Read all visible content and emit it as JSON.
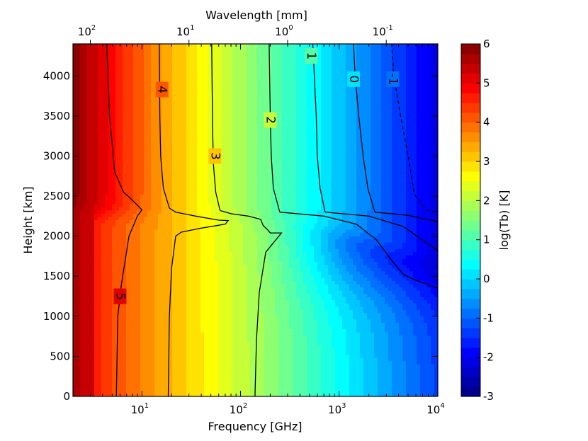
{
  "chart_data": {
    "type": "heatmap",
    "subtype": "filled-contour",
    "xlabel": "Frequency [GHz]",
    "x_scale": "log",
    "xlim": [
      2,
      10000
    ],
    "x_ticks": [
      {
        "value": 10,
        "base": "10",
        "exp": "1"
      },
      {
        "value": 100,
        "base": "10",
        "exp": "2"
      },
      {
        "value": 1000,
        "base": "10",
        "exp": "3"
      },
      {
        "value": 10000,
        "base": "10",
        "exp": "4"
      }
    ],
    "top_xlabel": "Wavelength [mm]",
    "top_ticks": [
      {
        "frequency": 3,
        "base": "10",
        "exp": "2"
      },
      {
        "frequency": 30,
        "base": "10",
        "exp": "1"
      },
      {
        "frequency": 300,
        "base": "10",
        "exp": "0"
      },
      {
        "frequency": 3000,
        "base": "10",
        "exp": "-1"
      }
    ],
    "ylabel": "Height [km]",
    "ylim": [
      0,
      4400
    ],
    "y_ticks": [
      "0",
      "500",
      "1000",
      "1500",
      "2000",
      "2500",
      "3000",
      "3500",
      "4000"
    ],
    "colorbar": {
      "label": "log(Tb) [K]",
      "range": [
        -3,
        6
      ],
      "ticks": [
        "-3",
        "-2",
        "-1",
        "0",
        "1",
        "2",
        "3",
        "4",
        "5",
        "6"
      ],
      "colormap": "jet",
      "jet_stops": [
        "#00007f",
        "#0000ff",
        "#007fff",
        "#00ffff",
        "#7fff7f",
        "#ffff00",
        "#ff7f00",
        "#ff0000",
        "#7f0000"
      ]
    },
    "contours": [
      {
        "level": "5",
        "label_at": [
          6,
          1250
        ],
        "points": [
          [
            5.5,
            0
          ],
          [
            5.7,
            1000
          ],
          [
            6.2,
            1400
          ],
          [
            7.4,
            2000
          ],
          [
            9,
            2250
          ],
          [
            10,
            2330
          ],
          [
            8,
            2450
          ],
          [
            6.5,
            2550
          ],
          [
            5.3,
            2800
          ],
          [
            4.7,
            3500
          ],
          [
            4.4,
            4400
          ]
        ]
      },
      {
        "level": "4",
        "label_at": [
          16,
          3830
        ],
        "points": [
          [
            19,
            2350
          ],
          [
            22,
            2300
          ],
          [
            35,
            2250
          ],
          [
            60,
            2200
          ],
          [
            75,
            2195
          ],
          [
            70,
            2150
          ],
          [
            40,
            2100
          ],
          [
            25,
            2050
          ],
          [
            22,
            2000
          ],
          [
            20,
            1600
          ],
          [
            19,
            1000
          ],
          [
            18.5,
            0
          ]
        ]
      },
      {
        "level": "4",
        "label_at": [
          16,
          3830
        ],
        "points": [
          [
            19,
            2350
          ],
          [
            16.5,
            2600
          ],
          [
            15.5,
            3000
          ],
          [
            15.2,
            3500
          ],
          [
            15,
            4400
          ]
        ]
      },
      {
        "level": "3",
        "label_at": [
          55,
          3000
        ],
        "points": [
          [
            62,
            2320
          ],
          [
            80,
            2280
          ],
          [
            120,
            2250
          ],
          [
            160,
            2210
          ],
          [
            170,
            2130
          ],
          [
            185,
            2090
          ],
          [
            200,
            2040
          ],
          [
            260,
            2040
          ],
          [
            180,
            1800
          ],
          [
            155,
            1300
          ],
          [
            145,
            700
          ],
          [
            140,
            0
          ]
        ]
      },
      {
        "level": "3",
        "label_at": [
          55,
          3000
        ],
        "points": [
          [
            62,
            2320
          ],
          [
            56,
            2550
          ],
          [
            53,
            2900
          ],
          [
            52,
            3400
          ],
          [
            51,
            4400
          ]
        ]
      },
      {
        "level": "2",
        "label_at": [
          200,
          3450
        ],
        "points": [
          [
            250,
            2300
          ],
          [
            700,
            2250
          ],
          [
            1500,
            2150
          ],
          [
            2400,
            1950
          ],
          [
            3500,
            1680
          ],
          [
            4500,
            1520
          ],
          [
            6000,
            1450
          ],
          [
            10000,
            1350
          ]
        ]
      },
      {
        "level": "2",
        "label_at": [
          200,
          3450
        ],
        "points": [
          [
            250,
            2300
          ],
          [
            215,
            2600
          ],
          [
            205,
            3000
          ],
          [
            200,
            3500
          ],
          [
            195,
            4400
          ]
        ]
      },
      {
        "level": "1",
        "label_at": [
          520,
          4250
        ],
        "points": [
          [
            720,
            2300
          ],
          [
            2000,
            2250
          ],
          [
            4500,
            2120
          ],
          [
            7000,
            1950
          ],
          [
            10000,
            1820
          ]
        ]
      },
      {
        "level": "1",
        "label_at": [
          520,
          4250
        ],
        "points": [
          [
            720,
            2300
          ],
          [
            640,
            2600
          ],
          [
            600,
            3000
          ],
          [
            585,
            3500
          ],
          [
            560,
            4000
          ],
          [
            540,
            4400
          ]
        ]
      },
      {
        "level": "0",
        "label_at": [
          1400,
          3960
        ],
        "points": [
          [
            2300,
            2300
          ],
          [
            5000,
            2260
          ],
          [
            10000,
            2180
          ]
        ]
      },
      {
        "level": "0",
        "label_at": [
          1400,
          3960
        ],
        "points": [
          [
            2300,
            2300
          ],
          [
            1950,
            2600
          ],
          [
            1750,
            3000
          ],
          [
            1580,
            3500
          ],
          [
            1450,
            4000
          ],
          [
            1400,
            4400
          ]
        ]
      },
      {
        "level": "-1",
        "label_at": [
          3500,
          3960
        ],
        "points": [
          [
            9500,
            2300
          ],
          [
            7500,
            2330
          ],
          [
            5800,
            2520
          ],
          [
            5000,
            3000
          ],
          [
            4200,
            3500
          ],
          [
            3600,
            4000
          ],
          [
            3400,
            4400
          ]
        ],
        "dashed": true
      }
    ]
  }
}
